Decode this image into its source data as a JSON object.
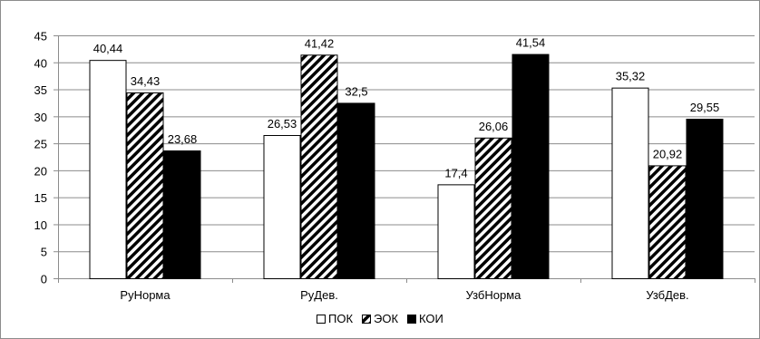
{
  "chart_data": {
    "type": "bar",
    "categories": [
      "РуНорма",
      "РуДев.",
      "УзбНорма",
      "УзбДев."
    ],
    "series": [
      {
        "name": "ПОК",
        "values": [
          40.44,
          26.53,
          17.4,
          35.32
        ],
        "labels": [
          "40,44",
          "26,53",
          "17,4",
          "35,32"
        ],
        "fill": "white"
      },
      {
        "name": "ЭОК",
        "values": [
          34.43,
          41.42,
          26.06,
          20.92
        ],
        "labels": [
          "34,43",
          "41,42",
          "26,06",
          "20,92"
        ],
        "fill": "diagonal-hatch"
      },
      {
        "name": "КОИ",
        "values": [
          23.68,
          32.5,
          41.54,
          29.55
        ],
        "labels": [
          "23,68",
          "32,5",
          "41,54",
          "29,55"
        ],
        "fill": "black"
      }
    ],
    "ylim": [
      0,
      45
    ],
    "yticks": [
      0,
      5,
      10,
      15,
      20,
      25,
      30,
      35,
      40,
      45
    ],
    "grid": true,
    "legend": "bottom-center"
  },
  "colors": {
    "axis": "#8c8c8c",
    "grid": "#8c8c8c",
    "bar_outline": "#000000",
    "solid": "#000000"
  }
}
